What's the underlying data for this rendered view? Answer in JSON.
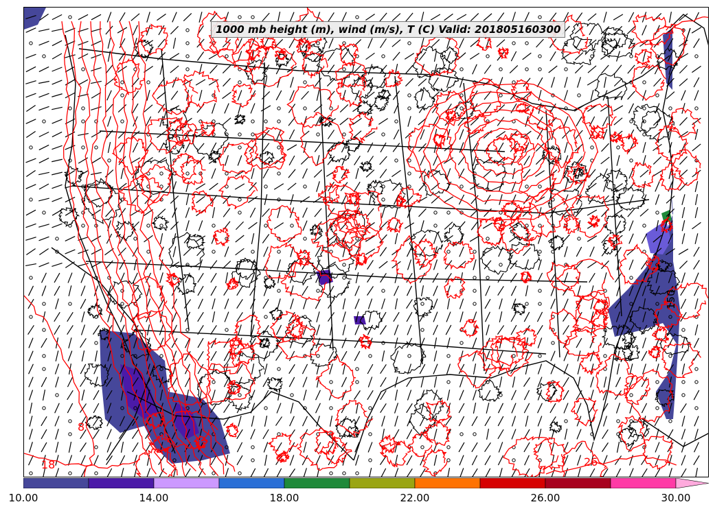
{
  "title": "1000 mb height (m), wind (m/s), T (C) Valid: 201805160300",
  "colorbar": {
    "colors": [
      "#46479a",
      "#4b1aa8",
      "#cc99ff",
      "#2a6fd6",
      "#1f8a3a",
      "#9aa512",
      "#ff7200",
      "#d60000",
      "#a8001e",
      "#ff3aa6",
      "#ffaadd"
    ],
    "labels": [
      "10.00",
      "14.00",
      "18.00",
      "22.00",
      "26.00",
      "30.00"
    ]
  },
  "map_labels": {
    "height_contour": "150",
    "temp_left": "18",
    "temp_mid_left": "8",
    "temp_right": "26"
  },
  "layers": {
    "temperature_contours_color": "#ff0000",
    "boundaries_color": "#000000",
    "height_contours_color": "#000000",
    "wind_barbs_color": "#000000"
  }
}
